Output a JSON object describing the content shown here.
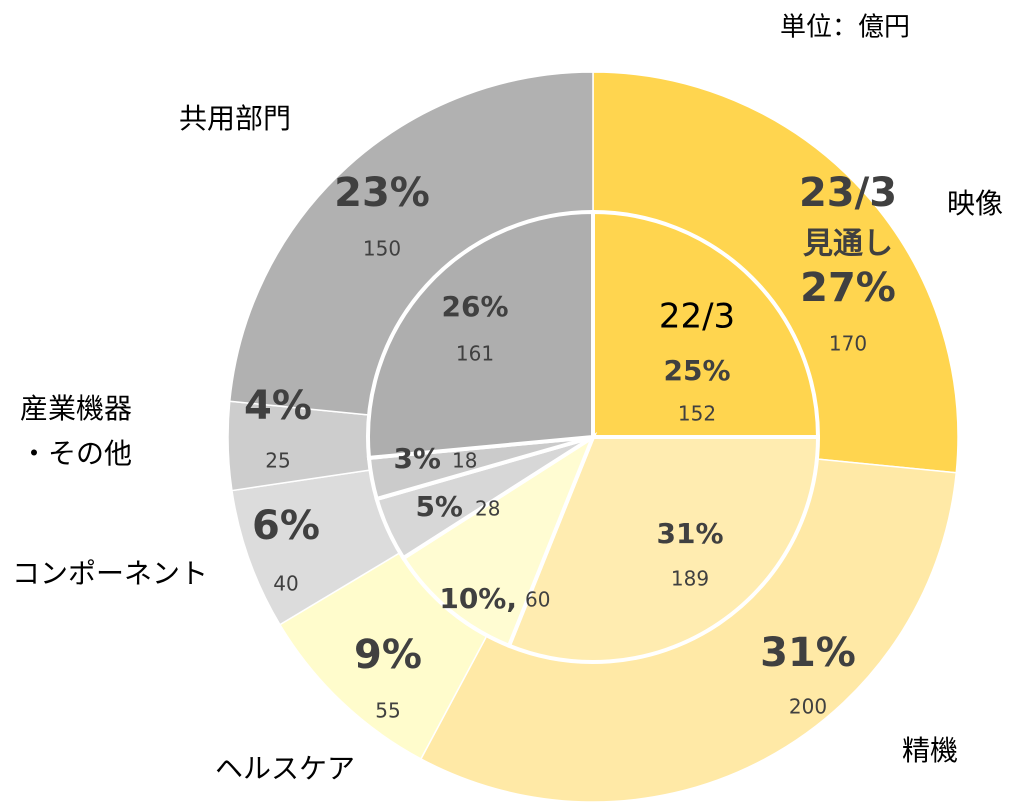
{
  "chart_data": {
    "type": "donut",
    "unit_label": "単位：億円",
    "categories": [
      "映像",
      "精機",
      "ヘルスケア",
      "コンポーネント",
      "産業機器\n・その他",
      "共用部門"
    ],
    "series": [
      {
        "name": "23/3",
        "name_suffix": "見通し",
        "ring": "outer",
        "values": [
          170,
          200,
          55,
          40,
          25,
          150
        ],
        "percent_labels": [
          "27%",
          "31%",
          "9%",
          "6%",
          "4%",
          "23%"
        ],
        "colors": [
          "#ffd54f",
          "#ffe9a6",
          "#fffccc",
          "#dcdcdc",
          "#cdcdcd",
          "#b1b1b1"
        ]
      },
      {
        "name": "22/3",
        "ring": "inner",
        "values": [
          152,
          189,
          60,
          28,
          18,
          161
        ],
        "percent_labels": [
          "25%",
          "31%",
          "10%,",
          "5%",
          "3%",
          "26%"
        ],
        "colors": [
          "#ffd54f",
          "#ffecb0",
          "#fffcd2",
          "#d7d7d7",
          "#cbcbcb",
          "#aeaeae"
        ]
      }
    ]
  }
}
